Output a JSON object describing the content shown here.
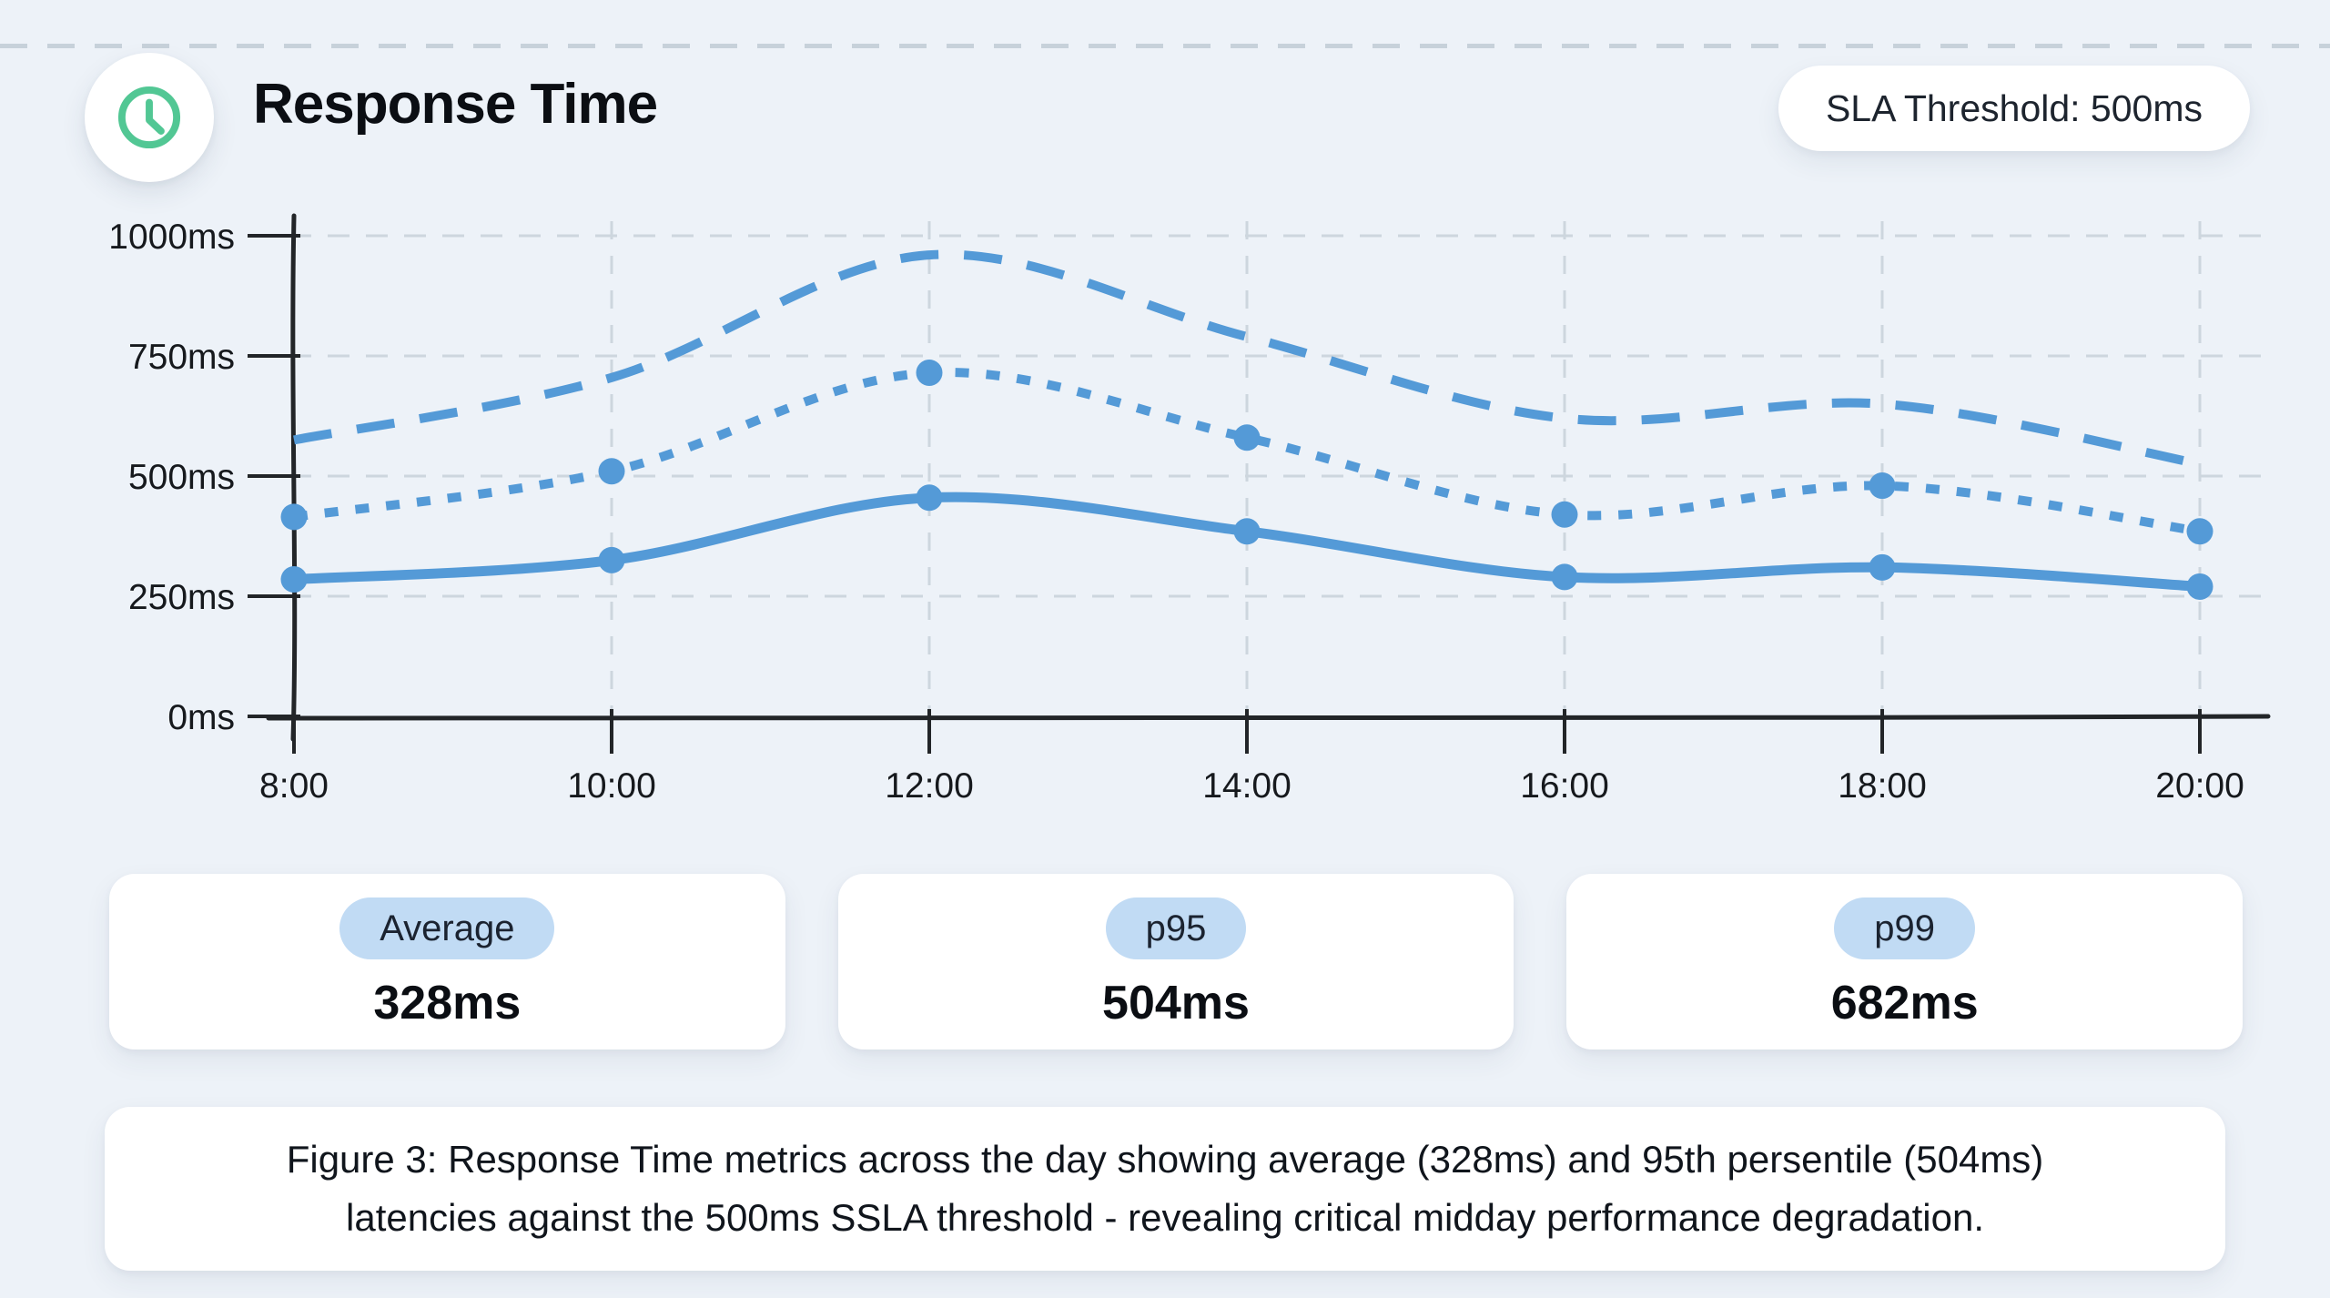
{
  "page": {
    "background": "#edf2f8",
    "top_divider_color": "#c7d1da"
  },
  "header": {
    "title": "Response Time",
    "icon": "clock-icon",
    "icon_color": "#52c794",
    "sla_badge": "SLA Threshold: 500ms"
  },
  "chart_data": {
    "type": "line",
    "title": "Response Time",
    "x": [
      "8:00",
      "10:00",
      "12:00",
      "14:00",
      "16:00",
      "18:00",
      "20:00"
    ],
    "xlabel": "",
    "ylabel": "",
    "ylim": [
      0,
      1000
    ],
    "ytick_values": [
      0,
      250,
      500,
      750,
      1000
    ],
    "ytick_labels": [
      "0ms",
      "250ms",
      "500ms",
      "750ms",
      "1000ms"
    ],
    "grid": true,
    "legend_position": "none",
    "line_color": "#549ad7",
    "sla_threshold_ms": 500,
    "series": [
      {
        "name": "average",
        "style": "solid",
        "markers": true,
        "values": [
          285,
          325,
          455,
          385,
          290,
          310,
          270
        ]
      },
      {
        "name": "p95",
        "style": "dotted",
        "markers": true,
        "values": [
          415,
          510,
          715,
          580,
          420,
          480,
          385
        ]
      },
      {
        "name": "p99",
        "style": "dashed",
        "markers": false,
        "values": [
          575,
          705,
          960,
          790,
          620,
          650,
          525
        ]
      }
    ]
  },
  "stats": [
    {
      "label": "Average",
      "value": "328ms"
    },
    {
      "label": "p95",
      "value": "504ms"
    },
    {
      "label": "p99",
      "value": "682ms"
    }
  ],
  "caption": {
    "line1": "Figure 3: Response Time metrics across the day showing average (328ms) and 95th persentile (504ms)",
    "line2": "latencies against the 500ms SSLA threshold - revealing critical midday performance degradation."
  }
}
